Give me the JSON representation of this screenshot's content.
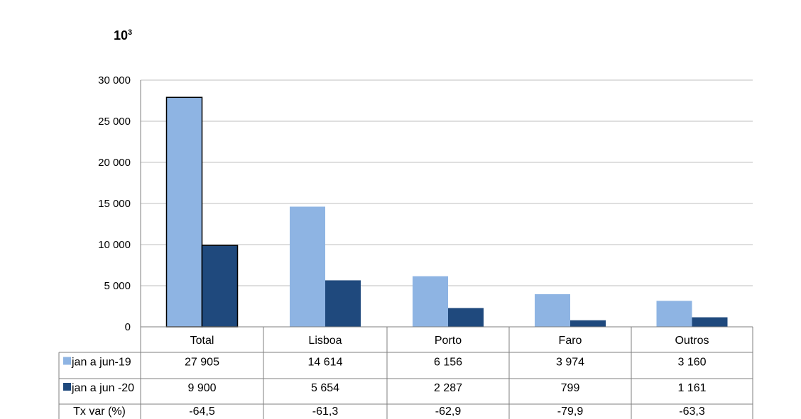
{
  "title": "",
  "unit_label": "10",
  "unit_exponent": "3",
  "chart_data": {
    "type": "bar",
    "categories": [
      "Total",
      "Lisboa",
      "Porto",
      "Faro",
      "Outros"
    ],
    "series": [
      {
        "name": "jan a jun-19",
        "color": "#8eb4e3",
        "values": [
          27905,
          14614,
          6156,
          3974,
          3160
        ]
      },
      {
        "name": "jan a jun -20",
        "color": "#1f497d",
        "values": [
          9900,
          5654,
          2287,
          799,
          1161
        ]
      }
    ],
    "yticks": [
      "0",
      "5 000",
      "10 000",
      "15 000",
      "20 000",
      "25 000",
      "30 000"
    ],
    "ylim": [
      0,
      30000
    ],
    "grid": true,
    "table": {
      "rows": [
        {
          "label": "jan a jun-19",
          "cells": [
            "27 905",
            "14 614",
            "6 156",
            "3 974",
            "3 160"
          ]
        },
        {
          "label": "jan a jun -20",
          "cells": [
            "9 900",
            "5 654",
            "2 287",
            "799",
            "1 161"
          ]
        },
        {
          "label": "Tx var (%)",
          "cells": [
            "-64,5",
            "-61,3",
            "-62,9",
            "-79,9",
            "-63,3"
          ]
        }
      ]
    }
  }
}
